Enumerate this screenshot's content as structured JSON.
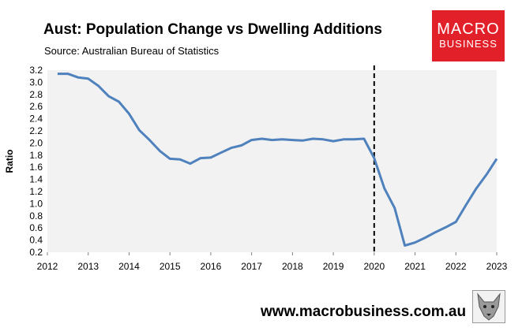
{
  "chart_data": {
    "type": "line",
    "title": "Aust: Population Change vs Dwelling Additions",
    "subtitle": "Source: Australian Bureau of Statistics",
    "xlabel": "",
    "ylabel": "Ratio",
    "xlim": [
      2012,
      2023
    ],
    "ylim": [
      0.2,
      3.2
    ],
    "x_ticks": [
      "2012",
      "2013",
      "2014",
      "2015",
      "2016",
      "2017",
      "2018",
      "2019",
      "2020",
      "2021",
      "2022",
      "2023"
    ],
    "y_ticks": [
      "0.2",
      "0.4",
      "0.6",
      "0.8",
      "1.0",
      "1.2",
      "1.4",
      "1.6",
      "1.8",
      "2.0",
      "2.2",
      "2.4",
      "2.6",
      "2.8",
      "3.0",
      "3.2"
    ],
    "vertical_marker_x": 2020,
    "series": [
      {
        "name": "Ratio",
        "color": "#4f81bd",
        "x": [
          2012.25,
          2012.5,
          2012.75,
          2013.0,
          2013.25,
          2013.5,
          2013.75,
          2014.0,
          2014.25,
          2014.5,
          2014.75,
          2015.0,
          2015.25,
          2015.5,
          2015.75,
          2016.0,
          2016.25,
          2016.5,
          2016.75,
          2017.0,
          2017.25,
          2017.5,
          2017.75,
          2018.0,
          2018.25,
          2018.5,
          2018.75,
          2019.0,
          2019.25,
          2019.5,
          2019.75,
          2020.0,
          2020.25,
          2020.5,
          2020.75,
          2021.0,
          2021.25,
          2021.5,
          2021.75,
          2022.0,
          2022.25,
          2022.5,
          2022.75,
          2023.0
        ],
        "values": [
          3.14,
          3.14,
          3.08,
          3.06,
          2.94,
          2.77,
          2.68,
          2.48,
          2.21,
          2.05,
          1.87,
          1.74,
          1.73,
          1.66,
          1.75,
          1.76,
          1.84,
          1.92,
          1.96,
          2.05,
          2.07,
          2.05,
          2.06,
          2.05,
          2.04,
          2.07,
          2.06,
          2.03,
          2.06,
          2.06,
          2.07,
          1.75,
          1.25,
          0.93,
          0.31,
          0.36,
          0.44,
          0.53,
          0.61,
          0.7,
          0.98,
          1.25,
          1.48,
          1.74
        ]
      }
    ]
  },
  "branding": {
    "logo_line1": "MACRO",
    "logo_line2": "BUSINESS",
    "logo_color": "#e2202a",
    "website": "www.macrobusiness.com.au",
    "avatar_icon": "wolf-icon"
  }
}
